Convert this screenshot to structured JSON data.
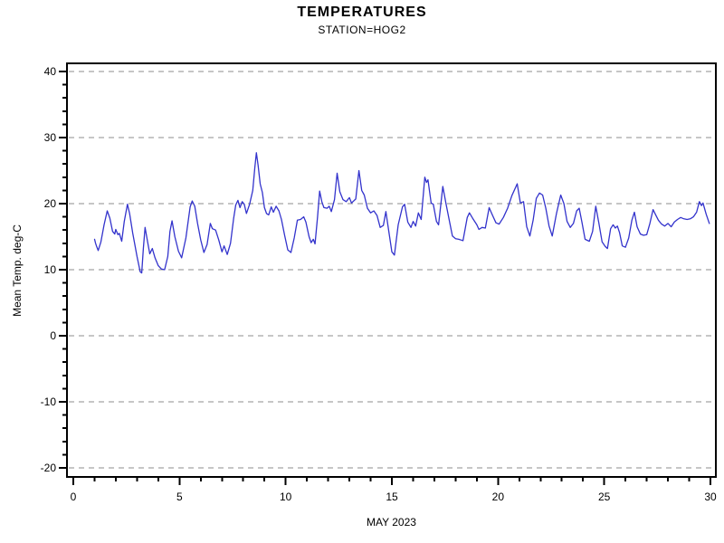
{
  "header": {
    "title": "TEMPERATURES",
    "subtitle": "STATION=HOG2"
  },
  "chart_data": {
    "type": "line",
    "title": "TEMPERATURES",
    "subtitle": "STATION=HOG2",
    "xlabel": "MAY 2023",
    "ylabel": "Mean Temp. deg-C",
    "xlim": [
      0,
      30
    ],
    "ylim": [
      -20,
      40
    ],
    "xticks_major": [
      0,
      5,
      10,
      15,
      20,
      25,
      30
    ],
    "xtick_minor_step": 1,
    "yticks_major": [
      40,
      30,
      20,
      10,
      0,
      -10,
      -20
    ],
    "ytick_minor_step": 2,
    "grid": "horizontal-dashed",
    "grid_color": "#8c8c8c",
    "frame_color": "#000000",
    "line_color": "#3333cc",
    "legend": "none",
    "series": [
      {
        "name": "Mean Temp deg-C at STATION=HOG2",
        "points": [
          [
            1.0,
            14.6
          ],
          [
            1.05,
            14.0
          ],
          [
            1.1,
            13.5
          ],
          [
            1.17,
            12.9
          ],
          [
            1.3,
            14.2
          ],
          [
            1.45,
            16.8
          ],
          [
            1.6,
            18.9
          ],
          [
            1.72,
            17.8
          ],
          [
            1.85,
            15.8
          ],
          [
            1.95,
            15.4
          ],
          [
            2.0,
            16.1
          ],
          [
            2.1,
            15.3
          ],
          [
            2.17,
            15.5
          ],
          [
            2.28,
            14.3
          ],
          [
            2.4,
            17.3
          ],
          [
            2.55,
            19.9
          ],
          [
            2.65,
            18.5
          ],
          [
            2.8,
            15.5
          ],
          [
            3.0,
            12.0
          ],
          [
            3.15,
            9.7
          ],
          [
            3.22,
            9.5
          ],
          [
            3.3,
            13.2
          ],
          [
            3.38,
            16.4
          ],
          [
            3.5,
            14.2
          ],
          [
            3.6,
            12.4
          ],
          [
            3.72,
            13.2
          ],
          [
            3.85,
            11.8
          ],
          [
            4.0,
            10.6
          ],
          [
            4.15,
            10.1
          ],
          [
            4.3,
            10.0
          ],
          [
            4.45,
            12.0
          ],
          [
            4.55,
            15.8
          ],
          [
            4.65,
            17.4
          ],
          [
            4.78,
            15.0
          ],
          [
            4.95,
            12.8
          ],
          [
            5.1,
            11.8
          ],
          [
            5.3,
            14.8
          ],
          [
            5.5,
            19.5
          ],
          [
            5.6,
            20.4
          ],
          [
            5.72,
            19.6
          ],
          [
            5.85,
            17.0
          ],
          [
            6.0,
            14.5
          ],
          [
            6.15,
            12.6
          ],
          [
            6.3,
            13.8
          ],
          [
            6.45,
            17.0
          ],
          [
            6.55,
            16.2
          ],
          [
            6.7,
            16.0
          ],
          [
            6.85,
            14.5
          ],
          [
            7.0,
            12.7
          ],
          [
            7.1,
            13.6
          ],
          [
            7.25,
            12.3
          ],
          [
            7.4,
            14.0
          ],
          [
            7.55,
            17.8
          ],
          [
            7.65,
            19.8
          ],
          [
            7.75,
            20.5
          ],
          [
            7.85,
            19.4
          ],
          [
            7.95,
            20.3
          ],
          [
            8.05,
            19.9
          ],
          [
            8.15,
            18.5
          ],
          [
            8.3,
            19.9
          ],
          [
            8.45,
            22.0
          ],
          [
            8.55,
            25.5
          ],
          [
            8.62,
            27.7
          ],
          [
            8.7,
            25.8
          ],
          [
            8.8,
            23.0
          ],
          [
            8.9,
            21.7
          ],
          [
            9.0,
            19.4
          ],
          [
            9.1,
            18.5
          ],
          [
            9.2,
            18.3
          ],
          [
            9.32,
            19.5
          ],
          [
            9.42,
            18.7
          ],
          [
            9.55,
            19.6
          ],
          [
            9.68,
            18.9
          ],
          [
            9.8,
            17.6
          ],
          [
            9.95,
            15.2
          ],
          [
            10.1,
            13.0
          ],
          [
            10.25,
            12.6
          ],
          [
            10.4,
            14.8
          ],
          [
            10.55,
            17.5
          ],
          [
            10.7,
            17.6
          ],
          [
            10.85,
            18.0
          ],
          [
            10.95,
            17.2
          ],
          [
            11.1,
            15.0
          ],
          [
            11.2,
            14.1
          ],
          [
            11.3,
            14.6
          ],
          [
            11.38,
            13.9
          ],
          [
            11.5,
            18.0
          ],
          [
            11.6,
            21.9
          ],
          [
            11.7,
            20.3
          ],
          [
            11.8,
            19.4
          ],
          [
            11.95,
            19.3
          ],
          [
            12.05,
            19.6
          ],
          [
            12.15,
            18.8
          ],
          [
            12.3,
            20.6
          ],
          [
            12.42,
            24.6
          ],
          [
            12.55,
            21.8
          ],
          [
            12.7,
            20.6
          ],
          [
            12.85,
            20.3
          ],
          [
            13.0,
            20.9
          ],
          [
            13.1,
            20.1
          ],
          [
            13.3,
            20.7
          ],
          [
            13.45,
            25.0
          ],
          [
            13.58,
            22.0
          ],
          [
            13.7,
            21.3
          ],
          [
            13.85,
            19.3
          ],
          [
            14.0,
            18.6
          ],
          [
            14.15,
            18.9
          ],
          [
            14.3,
            18.2
          ],
          [
            14.45,
            16.4
          ],
          [
            14.6,
            16.7
          ],
          [
            14.72,
            18.8
          ],
          [
            14.85,
            15.9
          ],
          [
            15.0,
            12.7
          ],
          [
            15.12,
            12.2
          ],
          [
            15.3,
            16.8
          ],
          [
            15.5,
            19.5
          ],
          [
            15.6,
            19.9
          ],
          [
            15.75,
            17.2
          ],
          [
            15.9,
            16.4
          ],
          [
            16.0,
            17.3
          ],
          [
            16.12,
            16.6
          ],
          [
            16.25,
            18.6
          ],
          [
            16.38,
            17.6
          ],
          [
            16.55,
            24.0
          ],
          [
            16.63,
            23.2
          ],
          [
            16.7,
            23.6
          ],
          [
            16.85,
            20.1
          ],
          [
            16.95,
            19.9
          ],
          [
            17.1,
            17.3
          ],
          [
            17.2,
            16.8
          ],
          [
            17.4,
            22.6
          ],
          [
            17.55,
            20.0
          ],
          [
            17.7,
            17.5
          ],
          [
            17.85,
            15.1
          ],
          [
            18.0,
            14.7
          ],
          [
            18.15,
            14.6
          ],
          [
            18.35,
            14.4
          ],
          [
            18.55,
            17.9
          ],
          [
            18.65,
            18.6
          ],
          [
            18.8,
            17.8
          ],
          [
            19.0,
            16.8
          ],
          [
            19.1,
            16.1
          ],
          [
            19.25,
            16.4
          ],
          [
            19.4,
            16.3
          ],
          [
            19.58,
            19.4
          ],
          [
            19.7,
            18.5
          ],
          [
            19.9,
            17.1
          ],
          [
            20.05,
            16.9
          ],
          [
            20.25,
            17.9
          ],
          [
            20.45,
            19.3
          ],
          [
            20.65,
            21.2
          ],
          [
            20.9,
            23.0
          ],
          [
            21.05,
            20.1
          ],
          [
            21.2,
            20.3
          ],
          [
            21.35,
            16.5
          ],
          [
            21.5,
            15.1
          ],
          [
            21.65,
            17.5
          ],
          [
            21.8,
            20.8
          ],
          [
            21.95,
            21.6
          ],
          [
            22.1,
            21.3
          ],
          [
            22.25,
            19.3
          ],
          [
            22.4,
            16.6
          ],
          [
            22.55,
            15.1
          ],
          [
            22.75,
            18.5
          ],
          [
            22.95,
            21.3
          ],
          [
            23.1,
            20.0
          ],
          [
            23.25,
            17.3
          ],
          [
            23.4,
            16.4
          ],
          [
            23.55,
            17.0
          ],
          [
            23.7,
            18.9
          ],
          [
            23.82,
            19.3
          ],
          [
            23.95,
            17.2
          ],
          [
            24.1,
            14.6
          ],
          [
            24.3,
            14.3
          ],
          [
            24.45,
            15.8
          ],
          [
            24.6,
            19.6
          ],
          [
            24.75,
            17.0
          ],
          [
            24.9,
            14.2
          ],
          [
            25.05,
            13.5
          ],
          [
            25.15,
            13.2
          ],
          [
            25.3,
            16.2
          ],
          [
            25.42,
            16.8
          ],
          [
            25.52,
            16.3
          ],
          [
            25.62,
            16.6
          ],
          [
            25.72,
            15.6
          ],
          [
            25.85,
            13.6
          ],
          [
            26.0,
            13.4
          ],
          [
            26.15,
            14.8
          ],
          [
            26.3,
            17.5
          ],
          [
            26.42,
            18.7
          ],
          [
            26.55,
            16.5
          ],
          [
            26.7,
            15.4
          ],
          [
            26.85,
            15.2
          ],
          [
            27.0,
            15.3
          ],
          [
            27.15,
            17.0
          ],
          [
            27.3,
            19.1
          ],
          [
            27.42,
            18.3
          ],
          [
            27.55,
            17.5
          ],
          [
            27.7,
            16.9
          ],
          [
            27.85,
            16.6
          ],
          [
            28.0,
            17.0
          ],
          [
            28.15,
            16.5
          ],
          [
            28.3,
            17.2
          ],
          [
            28.45,
            17.6
          ],
          [
            28.6,
            17.9
          ],
          [
            28.75,
            17.7
          ],
          [
            28.9,
            17.6
          ],
          [
            29.05,
            17.7
          ],
          [
            29.2,
            18.0
          ],
          [
            29.35,
            18.7
          ],
          [
            29.48,
            20.3
          ],
          [
            29.58,
            19.7
          ],
          [
            29.65,
            20.1
          ],
          [
            29.8,
            18.4
          ],
          [
            29.95,
            17.0
          ]
        ]
      }
    ]
  }
}
